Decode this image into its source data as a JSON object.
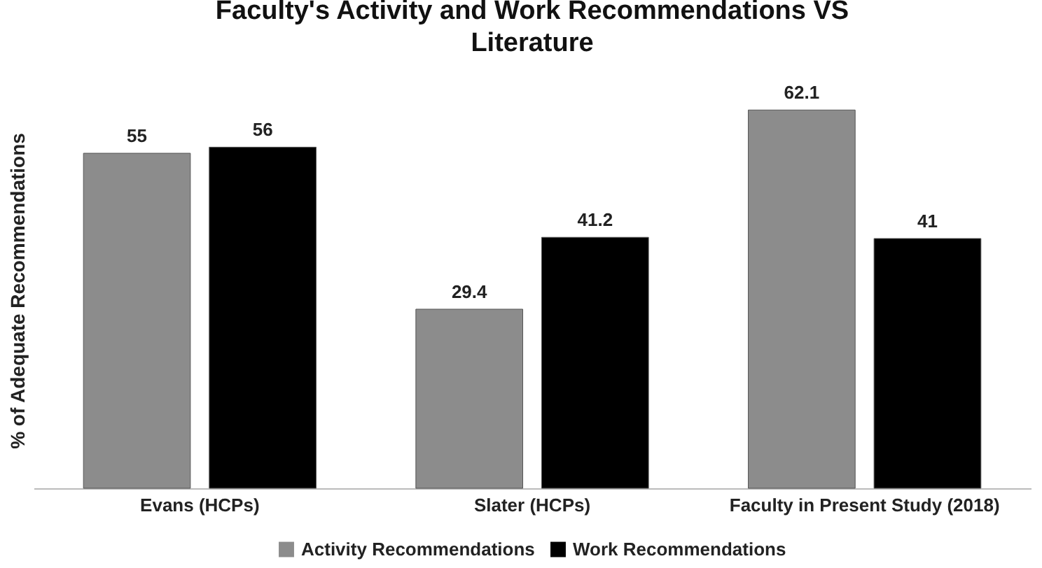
{
  "chart_data": {
    "type": "bar",
    "title": "Faculty's Activity and Work Recommendations VS Literature",
    "ylabel": "% of Adequate Recommendations",
    "categories": [
      "Evans (HCPs)",
      "Slater (HCPs)",
      "Faculty in Present Study (2018)"
    ],
    "series": [
      {
        "name": "Activity Recommendations",
        "color": "#8c8c8c",
        "values": [
          55,
          29.4,
          62.1
        ]
      },
      {
        "name": "Work Recommendations",
        "color": "#000000",
        "values": [
          56,
          41.2,
          41
        ]
      }
    ],
    "data_labels": true,
    "legend": "bottom",
    "grid": false
  }
}
